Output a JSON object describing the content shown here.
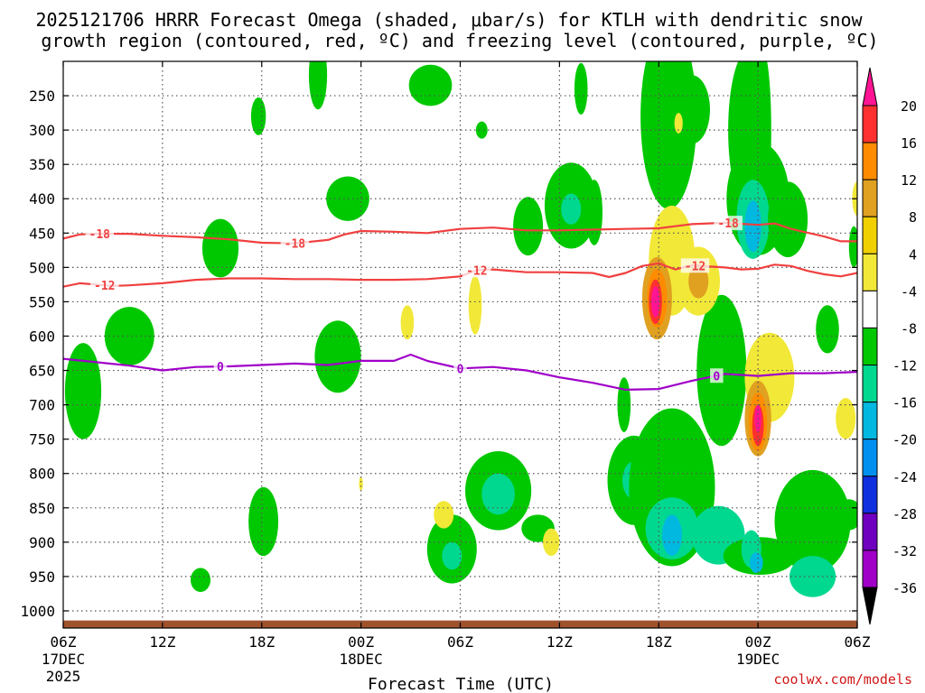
{
  "chart_data": {
    "type": "heatmap",
    "title_lines": [
      "2025121706 HRRR Forecast Omega (shaded, μbar/s) for KTLH with dendritic snow",
      "growth region (contoured, red, ºC) and freezing level (contoured, purple, ºC)"
    ],
    "xlabel": "Forecast Time (UTC)",
    "ylabel": "",
    "credit": "coolwx.com/models",
    "x_range_hours": [
      0,
      48
    ],
    "y_range_hpa": [
      1025,
      200
    ],
    "x_ticks": [
      {
        "h": 0,
        "label": "06Z",
        "sub1": "17DEC",
        "sub2": "2025"
      },
      {
        "h": 6,
        "label": "12Z",
        "sub1": "",
        "sub2": ""
      },
      {
        "h": 12,
        "label": "18Z",
        "sub1": "",
        "sub2": ""
      },
      {
        "h": 18,
        "label": "00Z",
        "sub1": "18DEC",
        "sub2": ""
      },
      {
        "h": 24,
        "label": "06Z",
        "sub1": "",
        "sub2": ""
      },
      {
        "h": 30,
        "label": "12Z",
        "sub1": "",
        "sub2": ""
      },
      {
        "h": 36,
        "label": "18Z",
        "sub1": "",
        "sub2": ""
      },
      {
        "h": 42,
        "label": "00Z",
        "sub1": "19DEC",
        "sub2": ""
      },
      {
        "h": 48,
        "label": "06Z",
        "sub1": "",
        "sub2": ""
      }
    ],
    "y_ticks": [
      250,
      300,
      350,
      400,
      450,
      500,
      550,
      600,
      650,
      700,
      750,
      800,
      850,
      900,
      950,
      1000
    ],
    "colorbar": {
      "levels": [
        20,
        16,
        12,
        8,
        4,
        -4,
        -8,
        -12,
        -16,
        -20,
        -24,
        -28,
        -32,
        -36
      ],
      "colors": [
        "#ff1493",
        "#ff3030",
        "#ff8c00",
        "#e0a020",
        "#f0d000",
        "#f2e838",
        "#ffffff",
        "#00c800",
        "#00d890",
        "#00b8e0",
        "#0090f0",
        "#1030e0",
        "#7000c0",
        "#a000c8",
        "#a8a8a8",
        "#000000"
      ]
    },
    "surface_color": "#a0522d",
    "contours": [
      {
        "name": "isotherm -18",
        "color": "#f04040",
        "labels": [
          {
            "h": 2.2,
            "text": "-18"
          },
          {
            "h": 14.0,
            "text": "-18"
          },
          {
            "h": 40.2,
            "text": "-18"
          }
        ],
        "points": [
          [
            0,
            458
          ],
          [
            1,
            452
          ],
          [
            2,
            451
          ],
          [
            4,
            451
          ],
          [
            6,
            454
          ],
          [
            8,
            456
          ],
          [
            10,
            459
          ],
          [
            12,
            464
          ],
          [
            14,
            465
          ],
          [
            16,
            460
          ],
          [
            17,
            452
          ],
          [
            18,
            447
          ],
          [
            20,
            448
          ],
          [
            22,
            450
          ],
          [
            24,
            444
          ],
          [
            26,
            442
          ],
          [
            28,
            446
          ],
          [
            30,
            446
          ],
          [
            32,
            445
          ],
          [
            34,
            444
          ],
          [
            36,
            443
          ],
          [
            37,
            440
          ],
          [
            38,
            437
          ],
          [
            40,
            435
          ],
          [
            42,
            438
          ],
          [
            43,
            436
          ],
          [
            44,
            444
          ],
          [
            46,
            455
          ],
          [
            47,
            462
          ],
          [
            48,
            462
          ]
        ]
      },
      {
        "name": "isotherm -12",
        "color": "#f04040",
        "labels": [
          {
            "h": 2.5,
            "text": "-12"
          },
          {
            "h": 25.0,
            "text": "-12"
          },
          {
            "h": 38.2,
            "text": "-12"
          }
        ],
        "points": [
          [
            0,
            528
          ],
          [
            1,
            523
          ],
          [
            2,
            525
          ],
          [
            3,
            527
          ],
          [
            4,
            526
          ],
          [
            6,
            523
          ],
          [
            8,
            518
          ],
          [
            10,
            516
          ],
          [
            12,
            516
          ],
          [
            14,
            517
          ],
          [
            16,
            517
          ],
          [
            18,
            518
          ],
          [
            20,
            518
          ],
          [
            22,
            517
          ],
          [
            24,
            513
          ],
          [
            25,
            504
          ],
          [
            26,
            503
          ],
          [
            28,
            507
          ],
          [
            30,
            507
          ],
          [
            32,
            508
          ],
          [
            33,
            514
          ],
          [
            34,
            508
          ],
          [
            35,
            498
          ],
          [
            36,
            494
          ],
          [
            37,
            503
          ],
          [
            38,
            497
          ],
          [
            40,
            500
          ],
          [
            41,
            503
          ],
          [
            42,
            502
          ],
          [
            43,
            496
          ],
          [
            44,
            498
          ],
          [
            45,
            505
          ],
          [
            46,
            510
          ],
          [
            47,
            513
          ],
          [
            48,
            508
          ]
        ]
      },
      {
        "name": "freezing level 0",
        "color": "#a000c8",
        "labels": [
          {
            "h": 9.5,
            "text": "0"
          },
          {
            "h": 24.0,
            "text": "0"
          },
          {
            "h": 39.5,
            "text": "0"
          }
        ],
        "points": [
          [
            0,
            633
          ],
          [
            2,
            638
          ],
          [
            4,
            643
          ],
          [
            6,
            650
          ],
          [
            8,
            645
          ],
          [
            10,
            644
          ],
          [
            12,
            642
          ],
          [
            14,
            640
          ],
          [
            16,
            642
          ],
          [
            18,
            636
          ],
          [
            20,
            636
          ],
          [
            21,
            627
          ],
          [
            22,
            636
          ],
          [
            24,
            647
          ],
          [
            26,
            645
          ],
          [
            28,
            650
          ],
          [
            30,
            660
          ],
          [
            32,
            668
          ],
          [
            34,
            678
          ],
          [
            36,
            677
          ],
          [
            38,
            665
          ],
          [
            40,
            655
          ],
          [
            42,
            658
          ],
          [
            44,
            654
          ],
          [
            46,
            654
          ],
          [
            48,
            652
          ]
        ]
      }
    ],
    "blobs": [
      {
        "h": 1.2,
        "p": 680,
        "w": 1.1,
        "hp": 140,
        "v": -5
      },
      {
        "h": 4.0,
        "p": 600,
        "w": 1.5,
        "hp": 85,
        "v": -5
      },
      {
        "h": 9.5,
        "p": 472,
        "w": 1.1,
        "hp": 85,
        "v": -5
      },
      {
        "h": 8.3,
        "p": 955,
        "w": 0.6,
        "hp": 35,
        "v": -5
      },
      {
        "h": 12.1,
        "p": 870,
        "w": 0.9,
        "hp": 100,
        "v": -5
      },
      {
        "h": 11.8,
        "p": 280,
        "w": 0.45,
        "hp": 55,
        "v": -5
      },
      {
        "h": 15.4,
        "p": 220,
        "w": 0.55,
        "hp": 100,
        "v": -5
      },
      {
        "h": 17.2,
        "p": 400,
        "w": 1.3,
        "hp": 65,
        "v": -5
      },
      {
        "h": 16.6,
        "p": 630,
        "w": 1.4,
        "hp": 105,
        "v": -5
      },
      {
        "h": 22.2,
        "p": 235,
        "w": 1.3,
        "hp": 60,
        "v": -5
      },
      {
        "h": 23.5,
        "p": 910,
        "w": 1.5,
        "hp": 100,
        "v": -5
      },
      {
        "h": 23.5,
        "p": 920,
        "w": 0.6,
        "hp": 40,
        "v": -9
      },
      {
        "h": 25.3,
        "p": 300,
        "w": 0.35,
        "hp": 25,
        "v": -5
      },
      {
        "h": 26.3,
        "p": 825,
        "w": 2.0,
        "hp": 115,
        "v": -5
      },
      {
        "h": 26.3,
        "p": 830,
        "w": 1.0,
        "hp": 60,
        "v": -9
      },
      {
        "h": 28.7,
        "p": 880,
        "w": 1.0,
        "hp": 40,
        "v": -5
      },
      {
        "h": 28.1,
        "p": 440,
        "w": 0.9,
        "hp": 85,
        "v": -5
      },
      {
        "h": 30.7,
        "p": 410,
        "w": 1.6,
        "hp": 125,
        "v": -5
      },
      {
        "h": 30.7,
        "p": 415,
        "w": 0.6,
        "hp": 45,
        "v": -9
      },
      {
        "h": 32.1,
        "p": 420,
        "w": 0.5,
        "hp": 95,
        "v": -5
      },
      {
        "h": 31.3,
        "p": 240,
        "w": 0.4,
        "hp": 75,
        "v": -5
      },
      {
        "h": 34.5,
        "p": 810,
        "w": 1.6,
        "hp": 130,
        "v": -5
      },
      {
        "h": 34.5,
        "p": 810,
        "w": 0.7,
        "hp": 55,
        "v": -9
      },
      {
        "h": 33.9,
        "p": 700,
        "w": 0.4,
        "hp": 80,
        "v": -5
      },
      {
        "h": 35.5,
        "p": 830,
        "w": 0.6,
        "hp": 110,
        "v": -5
      },
      {
        "h": 36.6,
        "p": 280,
        "w": 1.7,
        "hp": 270,
        "v": -5
      },
      {
        "h": 38.0,
        "p": 270,
        "w": 1.1,
        "hp": 100,
        "v": -5
      },
      {
        "h": 36.8,
        "p": 820,
        "w": 2.6,
        "hp": 230,
        "v": -5
      },
      {
        "h": 36.8,
        "p": 880,
        "w": 1.6,
        "hp": 90,
        "v": -9
      },
      {
        "h": 36.8,
        "p": 890,
        "w": 0.6,
        "hp": 60,
        "v": -13
      },
      {
        "h": 39.8,
        "p": 650,
        "w": 1.5,
        "hp": 220,
        "v": -5
      },
      {
        "h": 39.6,
        "p": 890,
        "w": 1.6,
        "hp": 85,
        "v": -9
      },
      {
        "h": 42.1,
        "p": 920,
        "w": 2.2,
        "hp": 55,
        "v": -5
      },
      {
        "h": 41.4,
        "p": 300,
        "w": 1.2,
        "hp": 230,
        "v": -5
      },
      {
        "h": 42.3,
        "p": 300,
        "w": 0.5,
        "hp": 230,
        "v": -5
      },
      {
        "h": 42.0,
        "p": 400,
        "w": 1.9,
        "hp": 165,
        "v": -5
      },
      {
        "h": 41.7,
        "p": 430,
        "w": 1.0,
        "hp": 115,
        "v": -9
      },
      {
        "h": 41.7,
        "p": 440,
        "w": 0.5,
        "hp": 75,
        "v": -13
      },
      {
        "h": 41.6,
        "p": 910,
        "w": 0.6,
        "hp": 55,
        "v": -9
      },
      {
        "h": 41.9,
        "p": 930,
        "w": 0.4,
        "hp": 30,
        "v": -13
      },
      {
        "h": 43.8,
        "p": 430,
        "w": 1.2,
        "hp": 110,
        "v": -5
      },
      {
        "h": 45.3,
        "p": 870,
        "w": 2.3,
        "hp": 150,
        "v": -5
      },
      {
        "h": 45.3,
        "p": 950,
        "w": 1.4,
        "hp": 60,
        "v": -9
      },
      {
        "h": 46.2,
        "p": 590,
        "w": 0.7,
        "hp": 70,
        "v": -5
      },
      {
        "h": 47.5,
        "p": 860,
        "w": 0.8,
        "hp": 45,
        "v": -5
      },
      {
        "h": 47.8,
        "p": 470,
        "w": 0.3,
        "hp": 60,
        "v": -5
      },
      {
        "h": 20.8,
        "p": 580,
        "w": 0.4,
        "hp": 50,
        "v": 5
      },
      {
        "h": 23.0,
        "p": 860,
        "w": 0.6,
        "hp": 40,
        "v": 5
      },
      {
        "h": 24.9,
        "p": 555,
        "w": 0.4,
        "hp": 85,
        "v": 5
      },
      {
        "h": 29.5,
        "p": 900,
        "w": 0.5,
        "hp": 40,
        "v": 5
      },
      {
        "h": 37.2,
        "p": 290,
        "w": 0.25,
        "hp": 30,
        "v": 5
      },
      {
        "h": 36.8,
        "p": 490,
        "w": 1.4,
        "hp": 160,
        "v": 5
      },
      {
        "h": 38.4,
        "p": 520,
        "w": 1.3,
        "hp": 100,
        "v": 5
      },
      {
        "h": 38.4,
        "p": 520,
        "w": 0.6,
        "hp": 50,
        "v": 9
      },
      {
        "h": 35.9,
        "p": 545,
        "w": 0.9,
        "hp": 120,
        "v": 9
      },
      {
        "h": 35.9,
        "p": 545,
        "w": 0.6,
        "hp": 85,
        "v": 13
      },
      {
        "h": 35.8,
        "p": 550,
        "w": 0.4,
        "hp": 65,
        "v": 17
      },
      {
        "h": 35.8,
        "p": 550,
        "w": 0.25,
        "hp": 45,
        "v": 21
      },
      {
        "h": 42.7,
        "p": 660,
        "w": 1.5,
        "hp": 130,
        "v": 5
      },
      {
        "h": 42.0,
        "p": 720,
        "w": 0.8,
        "hp": 110,
        "v": 9
      },
      {
        "h": 42.0,
        "p": 725,
        "w": 0.55,
        "hp": 85,
        "v": 13
      },
      {
        "h": 42.0,
        "p": 730,
        "w": 0.35,
        "hp": 60,
        "v": 17
      },
      {
        "h": 42.0,
        "p": 720,
        "w": 0.2,
        "hp": 40,
        "v": 21
      },
      {
        "h": 47.3,
        "p": 720,
        "w": 0.6,
        "hp": 60,
        "v": 5
      },
      {
        "h": 48.0,
        "p": 400,
        "w": 0.3,
        "hp": 50,
        "v": 5
      },
      {
        "h": 18.0,
        "p": 815,
        "w": 0.12,
        "hp": 20,
        "v": 5
      }
    ]
  }
}
